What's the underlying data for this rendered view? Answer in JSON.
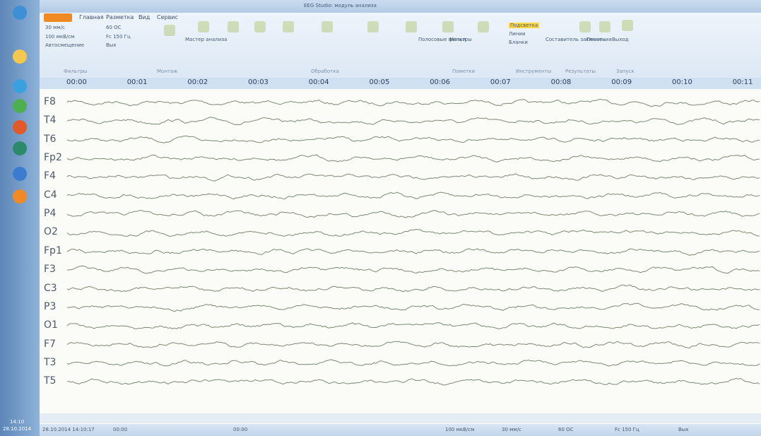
{
  "window": {
    "title": "EEG Studio: модуль анализа"
  },
  "ribbon": {
    "tabs": [
      "Главная",
      "Разметка",
      "Вид",
      "Сервис"
    ],
    "controls": [
      "30 мм/с",
      "100 мкВ/см",
      "Автосмещение",
      "60 ОС",
      "Fc 150 Гц",
      "Вых",
      "Мастер анализа",
      "Полосовые фильтры",
      "Метки",
      "Подсветка",
      "Линии",
      "Бланки",
      "Составитель заключения",
      "Печать",
      "Выход"
    ],
    "groups": [
      "Фильтры",
      "Монтаж",
      "Обработка",
      "Пометки",
      "Инструменты",
      "Результаты",
      "Запуск"
    ]
  },
  "timeline": [
    "00:00",
    "00:01",
    "00:02",
    "00:03",
    "00:04",
    "00:05",
    "00:06",
    "00:07",
    "00:08",
    "00:09",
    "00:10",
    "00:11"
  ],
  "channels": [
    "F8",
    "T4",
    "T6",
    "Fp2",
    "F4",
    "C4",
    "P4",
    "O2",
    "Fp1",
    "F3",
    "C3",
    "P3",
    "O1",
    "F7",
    "T3",
    "T5"
  ],
  "status": [
    "28.10.2014 14:10:17",
    "00:00",
    "00:00",
    "100 мкВ/см",
    "30 мм/с",
    "60 ОС",
    "Fc 150 Гц",
    "Вых"
  ],
  "taskbar": {
    "time": "14:10",
    "date": "28.10.2014"
  }
}
